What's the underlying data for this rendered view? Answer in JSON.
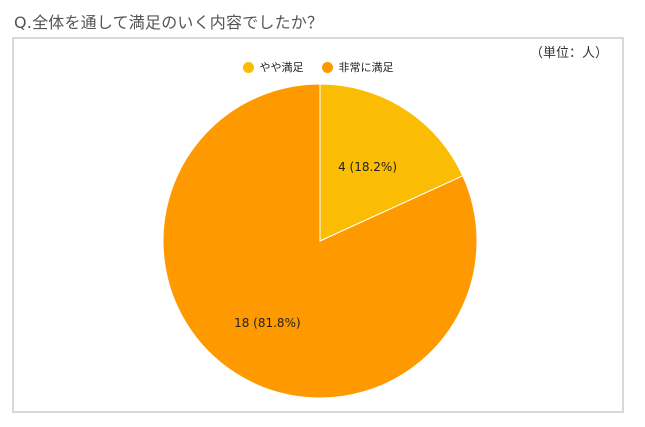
{
  "question": "Q.全体を通して満足のいく内容でしたか？",
  "unit_label": "（単位：人）",
  "chart_data": {
    "type": "pie",
    "title": "",
    "slices": [
      {
        "name": "やや満足",
        "value": 4,
        "percent": 18.2,
        "label": "4 (18.2%)",
        "color": "#FBBC04"
      },
      {
        "name": "非常に満足",
        "value": 18,
        "percent": 81.8,
        "label": "18 (81.8%)",
        "color": "#FF9900"
      }
    ],
    "legend_position": "top-center"
  }
}
